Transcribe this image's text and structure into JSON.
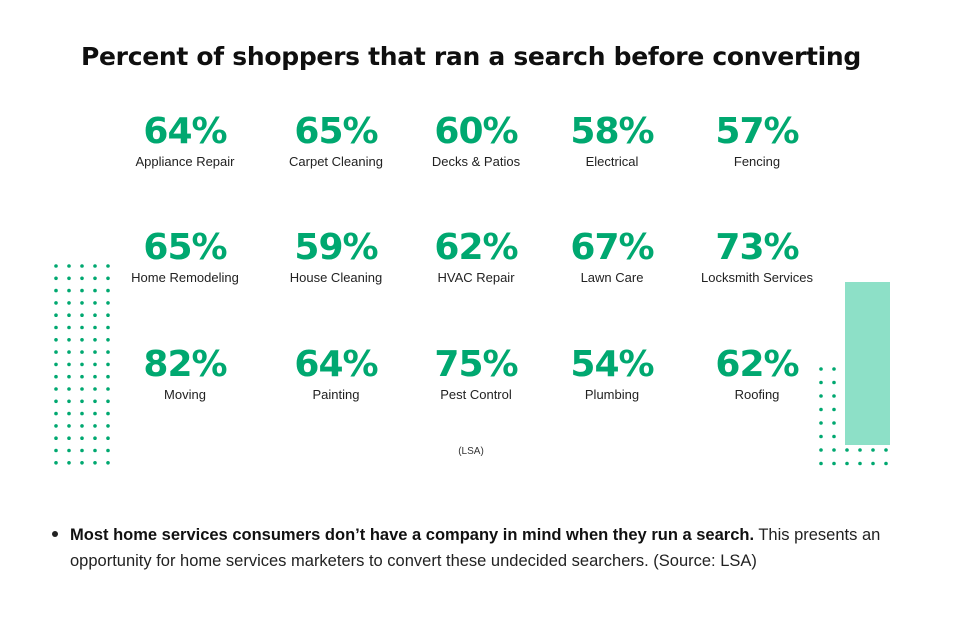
{
  "colors": {
    "accent": "#00a870",
    "accent_light": "#8de0c7",
    "text": "#111111"
  },
  "chart_data": {
    "type": "table",
    "title": "Percent of shoppers that ran a search before converting",
    "unit": "%",
    "categories": [
      "Appliance Repair",
      "Carpet Cleaning",
      "Decks & Patios",
      "Electrical",
      "Fencing",
      "Home Remodeling",
      "House Cleaning",
      "HVAC Repair",
      "Lawn Care",
      "Locksmith Services",
      "Moving",
      "Painting",
      "Pest Control",
      "Plumbing",
      "Roofing"
    ],
    "values": [
      64,
      65,
      60,
      58,
      57,
      65,
      59,
      62,
      67,
      73,
      82,
      64,
      75,
      54,
      62
    ],
    "display_values": [
      "64%",
      "65%",
      "60%",
      "58%",
      "57%",
      "65%",
      "59%",
      "62%",
      "67%",
      "73%",
      "82%",
      "64%",
      "75%",
      "54%",
      "62%"
    ],
    "source": "(LSA)"
  },
  "bullet": {
    "bold": "Most home services consumers don’t have a company in mind when they run a search.",
    "text": " This presents an opportunity for home services marketers to convert these undecided searchers. (Source: LSA)"
  }
}
